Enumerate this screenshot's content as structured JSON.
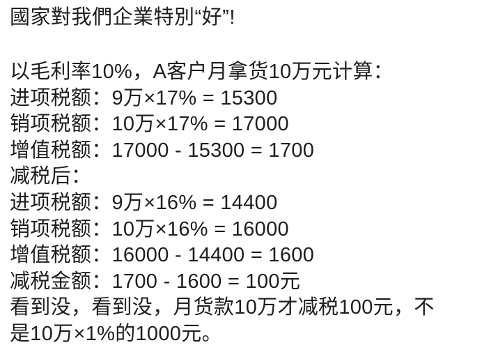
{
  "colors": {
    "background": "#ffffff",
    "text": "#1e1e1e"
  },
  "content": {
    "title": "國家對我們企業特別“好”!",
    "lines": [
      "以毛利率10%，A客户月拿货10万元计算：",
      "进项税额：9万×17% = 15300",
      "销项税额：10万×17% = 17000",
      "增值税额：17000 - 15300 = 1700",
      "减税后：",
      "进项税额：9万×16% = 14400",
      "销项税额：10万×16% = 16000",
      "增值税额：16000 - 14400 = 1600",
      "减税金额：1700 - 1600 = 100元",
      "看到没，看到没，月货款10万才减税100元，不",
      "是10万×1%的1000元。"
    ]
  }
}
